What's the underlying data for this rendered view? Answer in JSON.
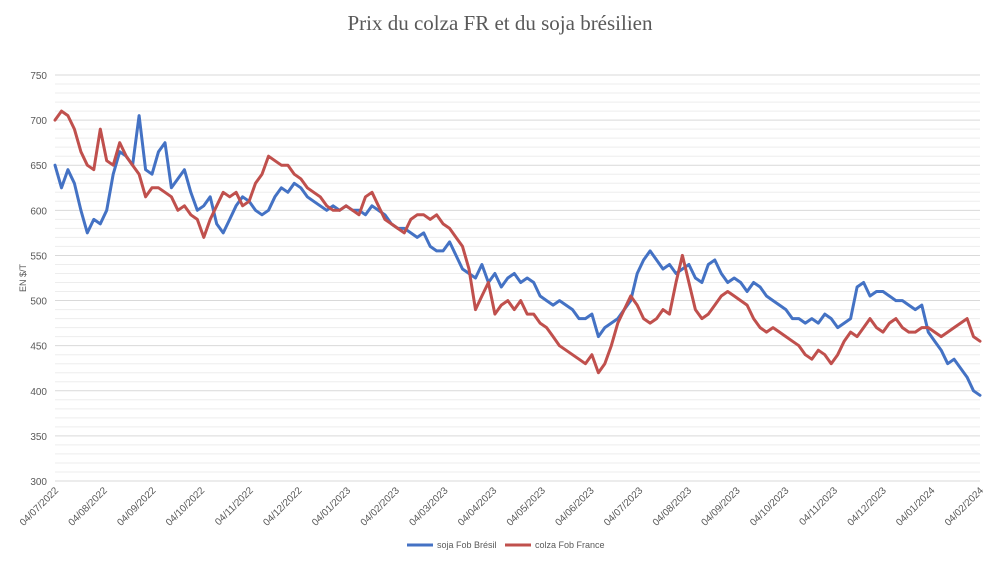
{
  "chart_data": {
    "type": "line",
    "title": "Prix du colza FR et du soja brésilien",
    "xlabel": "",
    "ylabel": "EN $/T",
    "ylim": [
      300,
      750
    ],
    "y_ticks": [
      300,
      350,
      400,
      450,
      500,
      550,
      600,
      650,
      700,
      750
    ],
    "x_tick_labels": [
      "04/07/2022",
      "04/08/2022",
      "04/09/2022",
      "04/10/2022",
      "04/11/2022",
      "04/12/2022",
      "04/01/2023",
      "04/02/2023",
      "04/03/2023",
      "04/04/2023",
      "04/05/2023",
      "04/06/2023",
      "04/07/2023",
      "04/08/2023",
      "04/09/2023",
      "04/10/2023",
      "04/11/2023",
      "04/12/2023",
      "04/01/2024",
      "04/02/2024"
    ],
    "grid": true,
    "legend_position": "bottom",
    "series": [
      {
        "name": "soja Fob Brésil",
        "color": "#4472c4",
        "values": [
          650,
          625,
          645,
          630,
          600,
          575,
          590,
          585,
          600,
          640,
          665,
          660,
          650,
          705,
          645,
          640,
          665,
          675,
          625,
          635,
          645,
          620,
          600,
          605,
          615,
          585,
          575,
          590,
          605,
          615,
          610,
          600,
          595,
          600,
          615,
          625,
          620,
          630,
          625,
          615,
          610,
          605,
          600,
          605,
          600,
          605,
          600,
          600,
          595,
          605,
          600,
          595,
          585,
          580,
          580,
          575,
          570,
          575,
          560,
          555,
          555,
          565,
          550,
          535,
          530,
          525,
          540,
          520,
          530,
          515,
          525,
          530,
          520,
          525,
          520,
          505,
          500,
          495,
          500,
          495,
          490,
          480,
          480,
          485,
          460,
          470,
          475,
          480,
          490,
          500,
          530,
          545,
          555,
          545,
          535,
          540,
          530,
          535,
          540,
          525,
          520,
          540,
          545,
          530,
          520,
          525,
          520,
          510,
          520,
          515,
          505,
          500,
          495,
          490,
          480,
          480,
          475,
          480,
          475,
          485,
          480,
          470,
          475,
          480,
          515,
          520,
          505,
          510,
          510,
          505,
          500,
          500,
          495,
          490,
          495,
          465,
          455,
          445,
          430,
          435,
          425,
          415,
          400,
          395
        ]
      },
      {
        "name": "colza Fob France",
        "color": "#c0504d",
        "values": [
          700,
          710,
          705,
          690,
          665,
          650,
          645,
          690,
          655,
          650,
          675,
          660,
          650,
          640,
          615,
          625,
          625,
          620,
          615,
          600,
          605,
          595,
          590,
          570,
          590,
          605,
          620,
          615,
          620,
          605,
          610,
          630,
          640,
          660,
          655,
          650,
          650,
          640,
          635,
          625,
          620,
          615,
          605,
          600,
          600,
          605,
          600,
          595,
          615,
          620,
          605,
          590,
          585,
          580,
          575,
          590,
          595,
          595,
          590,
          595,
          585,
          580,
          570,
          560,
          535,
          490,
          505,
          520,
          485,
          495,
          500,
          490,
          500,
          485,
          485,
          475,
          470,
          460,
          450,
          445,
          440,
          435,
          430,
          440,
          420,
          430,
          450,
          475,
          490,
          505,
          495,
          480,
          475,
          480,
          490,
          485,
          520,
          550,
          520,
          490,
          480,
          485,
          495,
          505,
          510,
          505,
          500,
          495,
          480,
          470,
          465,
          470,
          465,
          460,
          455,
          450,
          440,
          435,
          445,
          440,
          430,
          440,
          455,
          465,
          460,
          470,
          480,
          470,
          465,
          475,
          480,
          470,
          465,
          465,
          470,
          470,
          465,
          460,
          465,
          470,
          475,
          480,
          460,
          455
        ]
      }
    ]
  }
}
